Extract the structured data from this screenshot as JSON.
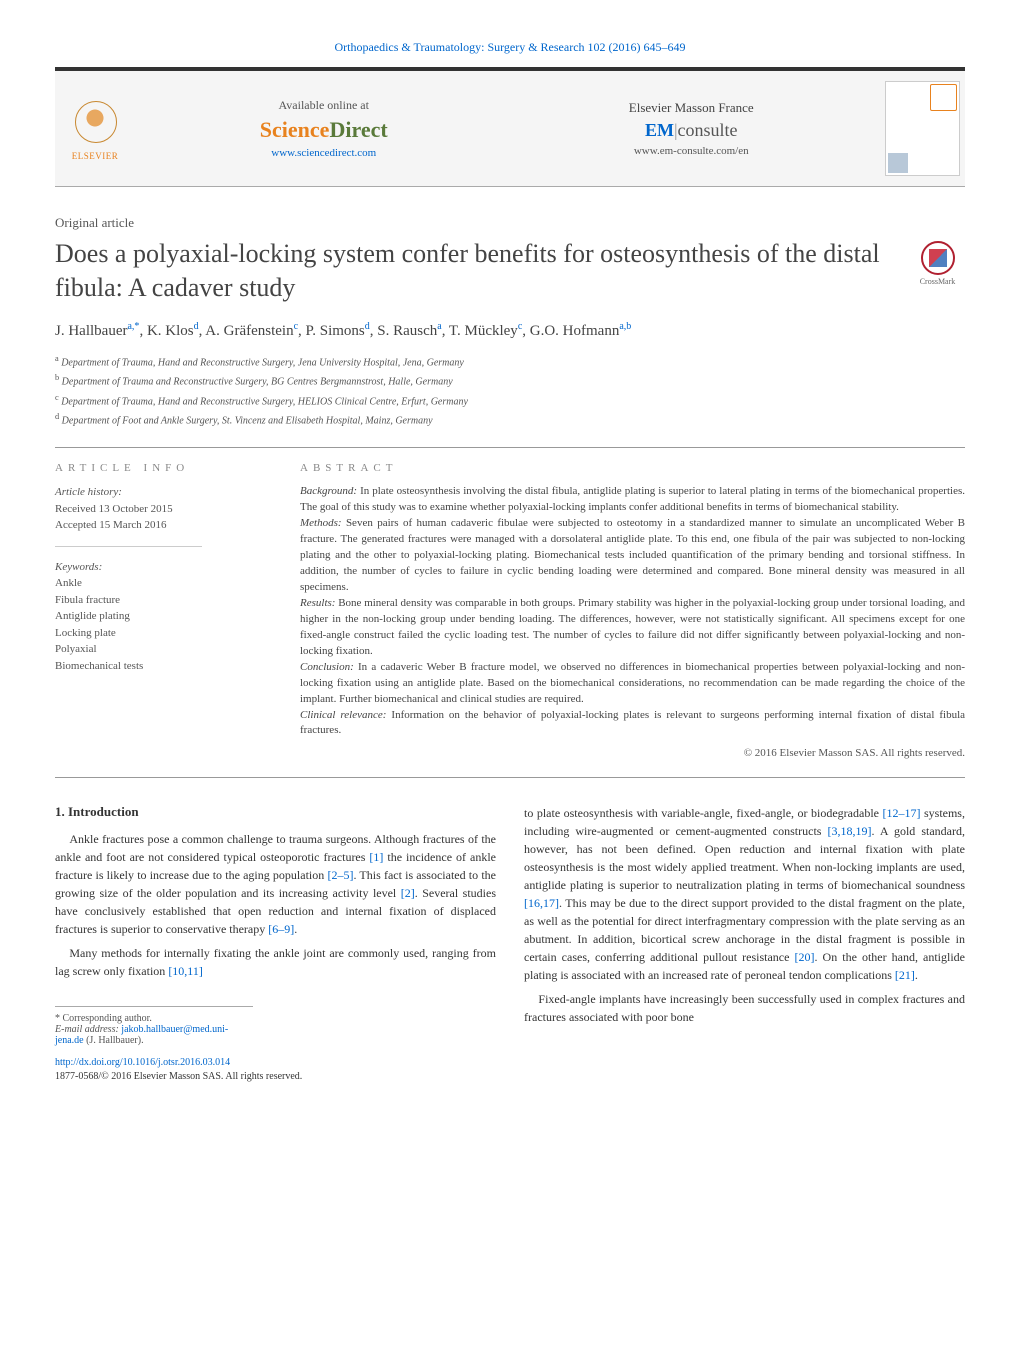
{
  "journal_header": "Orthopaedics & Traumatology: Surgery & Research 102 (2016) 645–649",
  "topbar": {
    "elsevier": "ELSEVIER",
    "available": "Available online at",
    "sd_science": "Science",
    "sd_direct": "Direct",
    "sd_url": "www.sciencedirect.com",
    "masson": "Elsevier Masson France",
    "em_prefix": "EM",
    "em_consulte": "consulte",
    "em_url": "www.em-consulte.com/en"
  },
  "article_type": "Original article",
  "title": "Does a polyaxial-locking system confer benefits for osteosynthesis of the distal fibula: A cadaver study",
  "crossmark": "CrossMark",
  "authors_html": "J. Hallbauer<sup>a,*</sup>, K. Klos<sup>d</sup>, A. Gräfenstein<sup>c</sup>, P. Simons<sup>d</sup>, S. Rausch<sup>a</sup>, T. Mückley<sup>c</sup>, G.O. Hofmann<sup>a,b</sup>",
  "affiliations": [
    {
      "sup": "a",
      "text": "Department of Trauma, Hand and Reconstructive Surgery, Jena University Hospital, Jena, Germany"
    },
    {
      "sup": "b",
      "text": "Department of Trauma and Reconstructive Surgery, BG Centres Bergmannstrost, Halle, Germany"
    },
    {
      "sup": "c",
      "text": "Department of Trauma, Hand and Reconstructive Surgery, HELIOS Clinical Centre, Erfurt, Germany"
    },
    {
      "sup": "d",
      "text": "Department of Foot and Ankle Surgery, St. Vincenz and Elisabeth Hospital, Mainz, Germany"
    }
  ],
  "info": {
    "heading": "ARTICLE INFO",
    "history_label": "Article history:",
    "received": "Received 13 October 2015",
    "accepted": "Accepted 15 March 2016",
    "keywords_label": "Keywords:",
    "keywords": [
      "Ankle",
      "Fibula fracture",
      "Antiglide plating",
      "Locking plate",
      "Polyaxial",
      "Biomechanical tests"
    ]
  },
  "abstract": {
    "heading": "ABSTRACT",
    "background_label": "Background:",
    "background": "In plate osteosynthesis involving the distal fibula, antiglide plating is superior to lateral plating in terms of the biomechanical properties. The goal of this study was to examine whether polyaxial-locking implants confer additional benefits in terms of biomechanical stability.",
    "methods_label": "Methods:",
    "methods": "Seven pairs of human cadaveric fibulae were subjected to osteotomy in a standardized manner to simulate an uncomplicated Weber B fracture. The generated fractures were managed with a dorsolateral antiglide plate. To this end, one fibula of the pair was subjected to non-locking plating and the other to polyaxial-locking plating. Biomechanical tests included quantification of the primary bending and torsional stiffness. In addition, the number of cycles to failure in cyclic bending loading were determined and compared. Bone mineral density was measured in all specimens.",
    "results_label": "Results:",
    "results": "Bone mineral density was comparable in both groups. Primary stability was higher in the polyaxial-locking group under torsional loading, and higher in the non-locking group under bending loading. The differences, however, were not statistically significant. All specimens except for one fixed-angle construct failed the cyclic loading test. The number of cycles to failure did not differ significantly between polyaxial-locking and non-locking fixation.",
    "conclusion_label": "Conclusion:",
    "conclusion": "In a cadaveric Weber B fracture model, we observed no differences in biomechanical properties between polyaxial-locking and non-locking fixation using an antiglide plate. Based on the biomechanical considerations, no recommendation can be made regarding the choice of the implant. Further biomechanical and clinical studies are required.",
    "relevance_label": "Clinical relevance:",
    "relevance": "Information on the behavior of polyaxial-locking plates is relevant to surgeons performing internal fixation of distal fibula fractures.",
    "copyright": "© 2016 Elsevier Masson SAS. All rights reserved."
  },
  "body": {
    "section_num": "1.",
    "section_title": "Introduction",
    "p1_a": "Ankle fractures pose a common challenge to trauma surgeons. Although fractures of the ankle and foot are not considered typical osteoporotic fractures ",
    "ref1": "[1]",
    "p1_b": " the incidence of ankle fracture is likely to increase due to the aging population ",
    "ref2_5": "[2–5]",
    "p1_c": ". This fact is associated to the growing size of the older population and its increasing activity level ",
    "ref2": "[2]",
    "p1_d": ". Several studies have conclusively established that open reduction and internal fixation of displaced fractures is superior to conservative therapy ",
    "ref6_9": "[6–9]",
    "p1_e": ".",
    "p2_a": "Many methods for internally fixating the ankle joint are commonly used, ranging from lag screw only fixation ",
    "ref10_11": "[10,11]",
    "p3_a": "to plate osteosynthesis with variable-angle, fixed-angle, or biodegradable ",
    "ref12_17": "[12–17]",
    "p3_b": " systems, including wire-augmented or cement-augmented constructs ",
    "ref3_18_19": "[3,18,19]",
    "p3_c": ". A gold standard, however, has not been defined. Open reduction and internal fixation with plate osteosynthesis is the most widely applied treatment. When non-locking implants are used, antiglide plating is superior to neutralization plating in terms of biomechanical soundness ",
    "ref16_17": "[16,17]",
    "p3_d": ". This may be due to the direct support provided to the distal fragment on the plate, as well as the potential for direct interfragmentary compression with the plate serving as an abutment. In addition, bicortical screw anchorage in the distal fragment is possible in certain cases, conferring additional pullout resistance ",
    "ref20": "[20]",
    "p3_e": ". On the other hand, antiglide plating is associated with an increased rate of peroneal tendon complications ",
    "ref21": "[21]",
    "p3_f": ".",
    "p4": "Fixed-angle implants have increasingly been successfully used in complex fractures and fractures associated with poor bone"
  },
  "footnotes": {
    "corresponding": "* Corresponding author.",
    "email_label": "E-mail address:",
    "email": "jakob.hallbauer@med.uni-jena.de",
    "email_name": "(J. Hallbauer).",
    "doi": "http://dx.doi.org/10.1016/j.otsr.2016.03.014",
    "issn_copyright": "1877-0568/© 2016 Elsevier Masson SAS. All rights reserved."
  },
  "colors": {
    "link": "#0066cc",
    "orange": "#e8821e",
    "green": "#5a7a3a",
    "text": "#333333",
    "muted": "#555555"
  }
}
